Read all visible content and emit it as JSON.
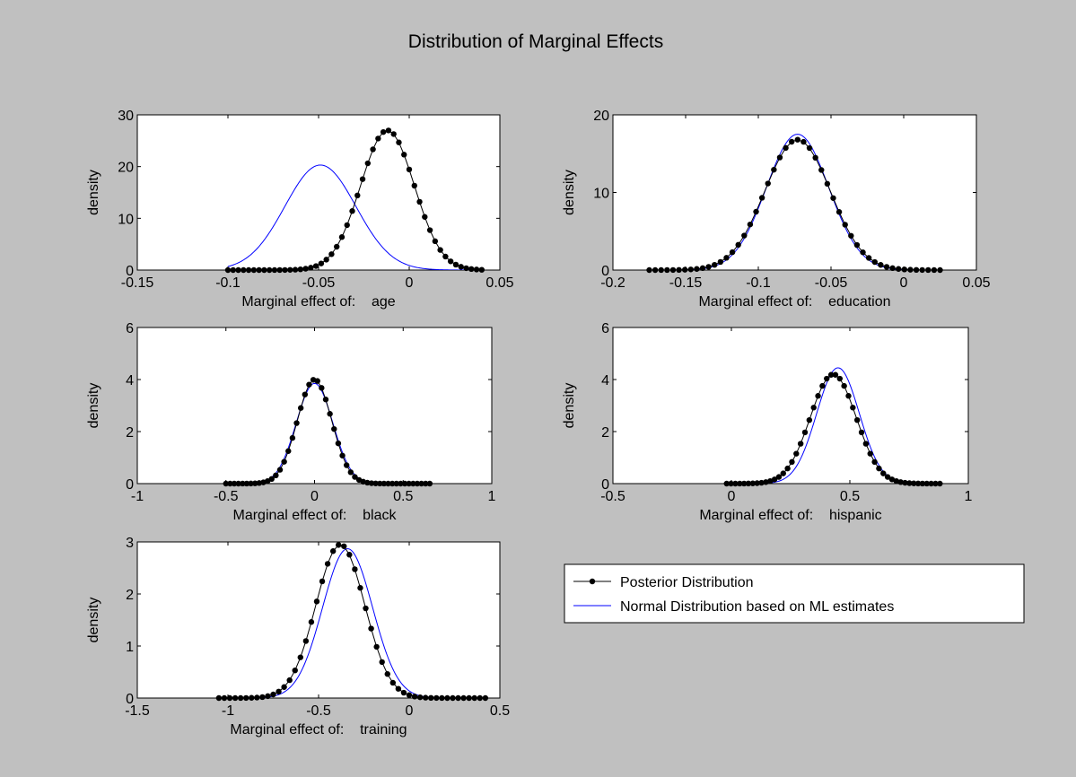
{
  "figure": {
    "title": "Distribution of Marginal Effects",
    "background": "#c0c0c0",
    "colors": {
      "posterior": "#000000",
      "normal": "#0000ff"
    }
  },
  "legend": {
    "placement": "right of bottom-left panel",
    "entries": [
      {
        "label": "Posterior Distribution",
        "series": "posterior"
      },
      {
        "label": "Normal Distribution based on ML estimates",
        "series": "normal"
      }
    ]
  },
  "chart_data": [
    {
      "type": "line",
      "variable": "age",
      "xlabel": "Marginal effect of:    age",
      "ylabel": "density",
      "xlim": [
        -0.15,
        0.05
      ],
      "ylim": [
        0,
        30
      ],
      "xticks": [
        "-0.15",
        "-0.1",
        "-0.05",
        "0",
        "0.05"
      ],
      "yticks": [
        "0",
        "10",
        "20",
        "30"
      ],
      "series": [
        {
          "key": "posterior",
          "markers": true,
          "x_range": [
            -0.1,
            0.04
          ],
          "points": 50,
          "components": [
            {
              "mean": -0.012,
              "sd": 0.0148,
              "peak": 27.0
            }
          ]
        },
        {
          "key": "normal",
          "markers": false,
          "x_range": [
            -0.1,
            0.04
          ],
          "points": 240,
          "components": [
            {
              "mean": -0.049,
              "sd": 0.0196,
              "peak": 20.3
            }
          ]
        }
      ]
    },
    {
      "type": "line",
      "variable": "education",
      "xlabel": "Marginal effect of:    education",
      "ylabel": "density",
      "xlim": [
        -0.2,
        0.05
      ],
      "ylim": [
        0,
        20
      ],
      "xticks": [
        "-0.2",
        "-0.15",
        "-0.1",
        "-0.05",
        "0",
        "0.05"
      ],
      "yticks": [
        "0",
        "10",
        "20"
      ],
      "series": [
        {
          "key": "posterior",
          "markers": true,
          "x_range": [
            -0.175,
            0.025
          ],
          "points": 50,
          "components": [
            {
              "mean": -0.073,
              "sd": 0.0225,
              "peak": 16.8
            }
          ]
        },
        {
          "key": "normal",
          "markers": false,
          "x_range": [
            -0.175,
            0.025
          ],
          "points": 240,
          "components": [
            {
              "mean": -0.073,
              "sd": 0.0215,
              "peak": 17.5
            }
          ]
        }
      ]
    },
    {
      "type": "line",
      "variable": "black",
      "xlabel": "Marginal effect of:    black",
      "ylabel": "density",
      "xlim": [
        -1,
        1
      ],
      "ylim": [
        0,
        6
      ],
      "xticks": [
        "-1",
        "-0.5",
        "0",
        "0.5",
        "1"
      ],
      "yticks": [
        "0",
        "2",
        "4",
        "6"
      ],
      "series": [
        {
          "key": "posterior",
          "markers": true,
          "x_range": [
            -0.5,
            0.65
          ],
          "points": 50,
          "components": [
            {
              "mean": 0.0,
              "sd": 0.097,
              "peak": 4.0
            }
          ]
        },
        {
          "key": "normal",
          "markers": false,
          "x_range": [
            -0.5,
            0.65
          ],
          "points": 240,
          "components": [
            {
              "mean": 0.0,
              "sd": 0.103,
              "peak": 3.85
            }
          ]
        }
      ]
    },
    {
      "type": "line",
      "variable": "hispanic",
      "xlabel": "Marginal effect of:    hispanic",
      "ylabel": "density",
      "xlim": [
        -0.5,
        1
      ],
      "ylim": [
        0,
        6
      ],
      "xticks": [
        "-0.5",
        "0",
        "0.5",
        "1"
      ],
      "yticks": [
        "0",
        "2",
        "4",
        "6"
      ],
      "series": [
        {
          "key": "posterior",
          "markers": true,
          "x_range": [
            -0.02,
            0.88
          ],
          "points": 50,
          "components": [
            {
              "mean": 0.43,
              "sd": 0.097,
              "peak": 4.2
            }
          ]
        },
        {
          "key": "normal",
          "markers": false,
          "x_range": [
            -0.02,
            0.88
          ],
          "points": 240,
          "components": [
            {
              "mean": 0.45,
              "sd": 0.09,
              "peak": 4.45
            }
          ]
        }
      ]
    },
    {
      "type": "line",
      "variable": "training",
      "xlabel": "Marginal effect of:    training",
      "ylabel": "density",
      "xlim": [
        -1.5,
        0.5
      ],
      "ylim": [
        0,
        3
      ],
      "xticks": [
        "-1.5",
        "-1",
        "-0.5",
        "0",
        "0.5"
      ],
      "yticks": [
        "0",
        "1",
        "2",
        "3"
      ],
      "series": [
        {
          "key": "posterior",
          "markers": true,
          "x_range": [
            -1.05,
            0.42
          ],
          "points": 50,
          "components": [
            {
              "mean": -0.38,
              "sd": 0.135,
              "peak": 2.95
            }
          ]
        },
        {
          "key": "normal",
          "markers": false,
          "x_range": [
            -1.05,
            0.42
          ],
          "points": 240,
          "components": [
            {
              "mean": -0.34,
              "sd": 0.138,
              "peak": 2.87
            }
          ]
        }
      ]
    }
  ]
}
